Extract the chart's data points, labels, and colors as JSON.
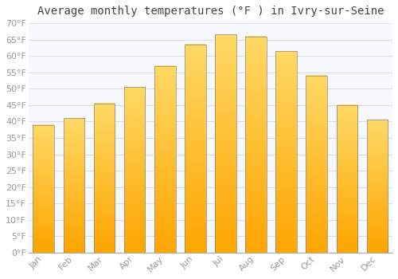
{
  "title": "Average monthly temperatures (°F ) in Ivry-sur-Seine",
  "months": [
    "Jan",
    "Feb",
    "Mar",
    "Apr",
    "May",
    "Jun",
    "Jul",
    "Aug",
    "Sep",
    "Oct",
    "Nov",
    "Dec"
  ],
  "values": [
    39,
    41,
    45.5,
    50.5,
    57,
    63.5,
    66.5,
    66,
    61.5,
    54,
    45,
    40.5
  ],
  "bar_color_top": "#FFD966",
  "bar_color_bottom": "#FFA500",
  "bar_edge_color": "#888888",
  "background_color": "#FFFFFF",
  "plot_bg_color": "#F8F8FF",
  "grid_color": "#DDDDEE",
  "ylim": [
    0,
    70
  ],
  "yticks": [
    0,
    5,
    10,
    15,
    20,
    25,
    30,
    35,
    40,
    45,
    50,
    55,
    60,
    65,
    70
  ],
  "ylabel_suffix": "°F",
  "title_fontsize": 10,
  "tick_fontsize": 8,
  "tick_color": "#999999"
}
